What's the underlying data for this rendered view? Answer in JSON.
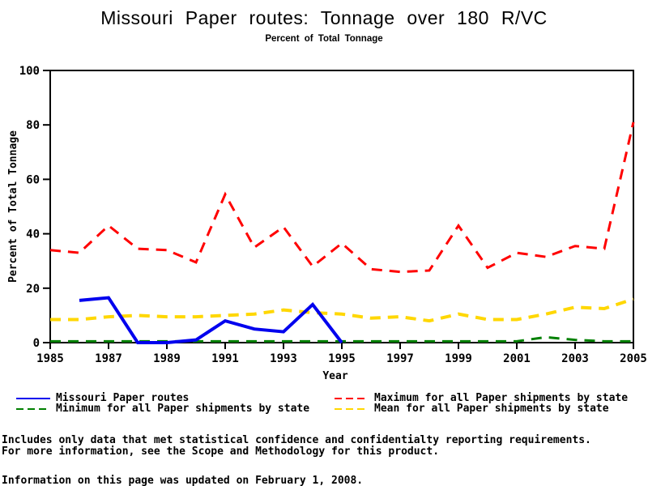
{
  "title": "Missouri Paper routes: Tonnage over 180 R/VC",
  "subtitle": "Percent of Total Tonnage",
  "chart_data": {
    "type": "line",
    "title": "Missouri Paper routes: Tonnage over 180 R/VC",
    "subtitle": "Percent of Total Tonnage",
    "xlabel": "Year",
    "ylabel": "Percent of Total Tonnage",
    "xlim": [
      1985,
      2005
    ],
    "ylim": [
      0,
      100
    ],
    "xticks": [
      1985,
      1987,
      1989,
      1991,
      1993,
      1995,
      1997,
      1999,
      2001,
      2003,
      2005
    ],
    "yticks": [
      0,
      20,
      40,
      60,
      80,
      100
    ],
    "grid": false,
    "legend_position": "bottom",
    "series": [
      {
        "name": "Missouri Paper routes",
        "color": "#0000EE",
        "style": "solid",
        "line_width": 4,
        "x": [
          1986,
          1987,
          1988,
          1989,
          1990,
          1991,
          1992,
          1993,
          1994,
          1995
        ],
        "values": [
          15.5,
          16.5,
          0,
          0,
          1,
          8,
          5,
          4,
          14,
          0
        ]
      },
      {
        "name": "Maximum for all Paper shipments by state",
        "color": "#FF0000",
        "style": "dashed",
        "line_width": 3,
        "x": [
          1985,
          1986,
          1987,
          1988,
          1989,
          1990,
          1991,
          1992,
          1993,
          1994,
          1995,
          1996,
          1997,
          1998,
          1999,
          2000,
          2001,
          2002,
          2003,
          2004,
          2005
        ],
        "values": [
          34,
          33,
          43,
          34.5,
          34,
          29.5,
          54.5,
          35,
          42.5,
          28,
          36.5,
          27,
          26,
          26.5,
          43,
          27.5,
          33,
          31.5,
          35.5,
          34.5,
          81
        ]
      },
      {
        "name": "Minimum for all Paper shipments by state",
        "color": "#008000",
        "style": "dashed",
        "line_width": 3,
        "x": [
          1985,
          1986,
          1987,
          1988,
          1989,
          1990,
          1991,
          1992,
          1993,
          1994,
          1995,
          1996,
          1997,
          1998,
          1999,
          2000,
          2001,
          2002,
          2003,
          2004,
          2005
        ],
        "values": [
          0.5,
          0.5,
          0.5,
          0.5,
          0.5,
          0.5,
          0.5,
          0.5,
          0.5,
          0.5,
          0.5,
          0.5,
          0.5,
          0.5,
          0.5,
          0.5,
          0.5,
          2,
          1,
          0.5,
          0.5
        ]
      },
      {
        "name": "Mean for all Paper shipments by state",
        "color": "#FFD700",
        "style": "dashed",
        "line_width": 4,
        "x": [
          1985,
          1986,
          1987,
          1988,
          1989,
          1990,
          1991,
          1992,
          1993,
          1994,
          1995,
          1996,
          1997,
          1998,
          1999,
          2000,
          2001,
          2002,
          2003,
          2004,
          2005
        ],
        "values": [
          8.5,
          8.5,
          9.5,
          10,
          9.5,
          9.5,
          10,
          10.5,
          12,
          11,
          10.5,
          9,
          9.5,
          8,
          10.5,
          8.5,
          8.5,
          10.5,
          13,
          12.5,
          16
        ]
      }
    ]
  },
  "legend": {
    "items": [
      {
        "label": "Missouri Paper routes",
        "color": "#0000EE",
        "style": "solid"
      },
      {
        "label": "Maximum for all Paper shipments by state",
        "color": "#FF0000",
        "style": "dashed"
      },
      {
        "label": "Minimum for all Paper shipments by state",
        "color": "#008000",
        "style": "dashed"
      },
      {
        "label": "Mean for all Paper shipments by state",
        "color": "#FFD700",
        "style": "dashed"
      }
    ]
  },
  "footer": {
    "line1": "Includes only data that met statistical confidence and confidentialty reporting requirements.",
    "line2": "For more information, see the Scope and Methodology for this product.",
    "line3": "Information on this page was updated on February 1, 2008."
  }
}
